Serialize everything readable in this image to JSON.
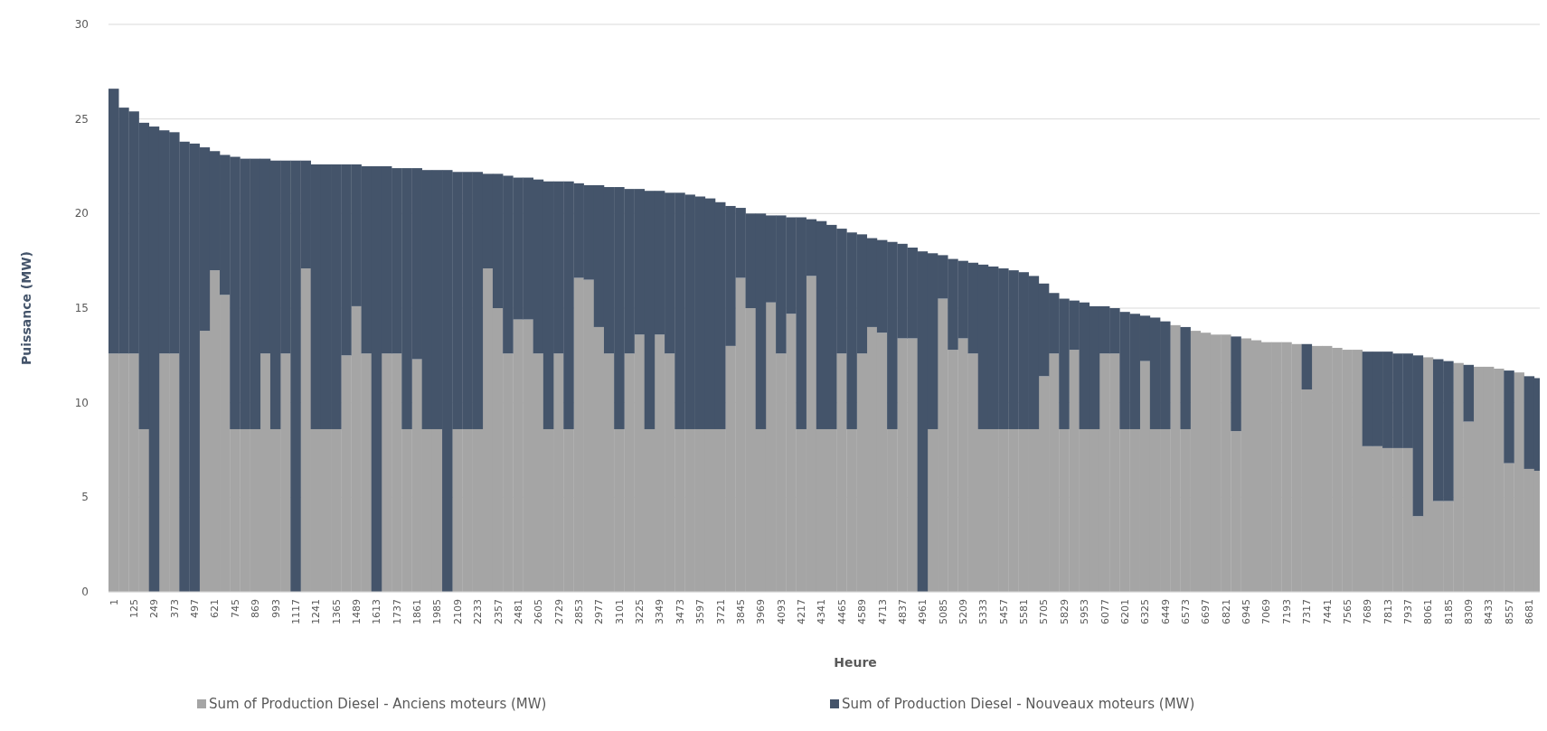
{
  "chart_data": {
    "type": "bar",
    "stacked": true,
    "xlabel": "Heure",
    "ylabel": "Puissance (MW)",
    "ylim": [
      0,
      30
    ],
    "yticks": [
      0,
      5,
      10,
      15,
      20,
      25,
      30
    ],
    "grid": "y",
    "legend": "bottom",
    "categories": [
      "1",
      null,
      "125",
      null,
      "249",
      null,
      "373",
      null,
      "497",
      null,
      "621",
      null,
      "745",
      null,
      "869",
      null,
      "993",
      null,
      "1117",
      null,
      "1241",
      null,
      "1365",
      null,
      "1489",
      null,
      "1613",
      null,
      "1737",
      null,
      "1861",
      null,
      "1985",
      null,
      "2109",
      null,
      "2233",
      null,
      "2357",
      null,
      "2481",
      null,
      "2605",
      null,
      "2729",
      null,
      "2853",
      null,
      "2977",
      null,
      "3101",
      null,
      "3225",
      null,
      "3349",
      null,
      "3473",
      null,
      "3597",
      null,
      "3721",
      null,
      "3845",
      null,
      "3969",
      null,
      "4093",
      null,
      "4217",
      null,
      "4341",
      null,
      "4465",
      null,
      "4589",
      null,
      "4713",
      null,
      "4837",
      null,
      "4961",
      null,
      "5085",
      null,
      "5209",
      null,
      "5333",
      null,
      "5457",
      null,
      "5581",
      null,
      "5705",
      null,
      "5829",
      null,
      "5953",
      null,
      "6077",
      null,
      "6201",
      null,
      "6325",
      null,
      "6449",
      null,
      "6573",
      null,
      "6697",
      null,
      "6821",
      null,
      "6945",
      null,
      "7069",
      null,
      "7193",
      null,
      "7317",
      null,
      "7441",
      null,
      "7565",
      null,
      "7689",
      null,
      "7813",
      null,
      "7937",
      null,
      "8061",
      null,
      "8185",
      null,
      "8309",
      null,
      "8433",
      null,
      "8557",
      null,
      "8681",
      null
    ],
    "series": [
      {
        "name": "Sum of Production Diesel - Anciens moteurs (MW)",
        "color": "#a5a5a5",
        "values": [
          12.6,
          12.6,
          12.6,
          8.6,
          0,
          12.6,
          12.6,
          0,
          0,
          13.8,
          17.0,
          15.7,
          8.6,
          8.6,
          8.6,
          12.6,
          8.6,
          12.6,
          0,
          17.1,
          8.6,
          8.6,
          8.6,
          12.5,
          15.1,
          12.6,
          0,
          12.6,
          12.6,
          8.6,
          12.3,
          8.6,
          8.6,
          0,
          8.6,
          8.6,
          8.6,
          17.1,
          15.0,
          12.6,
          14.4,
          14.4,
          12.6,
          8.6,
          12.6,
          8.6,
          16.6,
          16.5,
          14.0,
          12.6,
          8.6,
          12.6,
          13.6,
          8.6,
          13.6,
          12.6,
          8.6,
          8.6,
          8.6,
          8.6,
          8.6,
          13.0,
          16.6,
          15.0,
          8.6,
          15.3,
          12.6,
          14.7,
          8.6,
          16.7,
          8.6,
          8.6,
          12.6,
          8.6,
          12.6,
          14.0,
          13.7,
          8.6,
          13.4,
          13.4,
          0,
          8.6,
          15.5,
          12.8,
          13.4,
          12.6,
          8.6,
          8.6,
          8.6,
          8.6,
          8.6,
          8.6,
          11.4,
          12.6,
          8.6,
          12.8,
          8.6,
          8.6,
          12.6,
          12.6,
          8.6,
          8.6,
          12.2,
          8.6,
          8.6,
          14.1,
          8.6,
          13.8,
          13.7,
          13.6,
          13.6,
          8.5,
          13.4,
          13.3,
          13.2,
          13.2,
          13.2,
          13.1,
          10.7,
          13.0,
          13.0,
          12.9,
          12.8,
          12.8,
          7.7,
          7.7,
          7.6,
          7.6,
          7.6,
          4.0,
          12.4,
          4.8,
          4.8,
          12.1,
          9.0,
          11.9,
          11.9,
          11.8,
          6.8,
          11.6,
          6.5,
          6.4
        ]
      },
      {
        "name": "Sum of Production Diesel - Nouveaux moteurs (MW)",
        "color": "#44546a",
        "values": [
          14.0,
          13.0,
          12.8,
          16.2,
          24.6,
          11.8,
          11.7,
          23.8,
          23.7,
          9.7,
          6.3,
          7.4,
          14.4,
          14.3,
          14.3,
          10.3,
          14.2,
          10.2,
          22.8,
          5.7,
          14.0,
          14.0,
          14.0,
          10.1,
          7.5,
          9.9,
          22.5,
          9.9,
          9.8,
          13.8,
          10.1,
          13.7,
          13.7,
          22.3,
          13.6,
          13.6,
          13.6,
          5.0,
          7.1,
          9.4,
          7.5,
          7.5,
          9.2,
          13.1,
          9.1,
          13.1,
          5.0,
          5.0,
          7.5,
          8.8,
          12.8,
          8.7,
          7.7,
          12.6,
          7.6,
          8.5,
          12.5,
          12.4,
          12.3,
          12.2,
          12.0,
          7.4,
          3.7,
          5.0,
          11.4,
          4.6,
          7.3,
          5.1,
          11.2,
          3.0,
          11.0,
          10.8,
          6.6,
          10.4,
          6.3,
          4.7,
          4.9,
          9.9,
          5.0,
          4.8,
          18.0,
          9.3,
          2.3,
          4.8,
          4.1,
          4.8,
          8.7,
          8.6,
          8.5,
          8.4,
          8.3,
          8.1,
          4.9,
          3.2,
          6.9,
          2.6,
          6.7,
          6.5,
          2.5,
          2.4,
          6.2,
          6.1,
          2.4,
          5.9,
          5.7,
          0,
          5.4,
          0,
          0,
          0,
          0,
          5.0,
          0,
          0,
          0,
          0,
          0,
          0,
          2.4,
          0,
          0,
          0,
          0,
          0,
          5.0,
          5.0,
          5.1,
          5.0,
          5.0,
          8.5,
          0,
          7.5,
          7.4,
          0,
          3.0,
          0,
          0,
          0,
          4.9,
          0,
          4.9,
          4.9
        ]
      }
    ]
  }
}
